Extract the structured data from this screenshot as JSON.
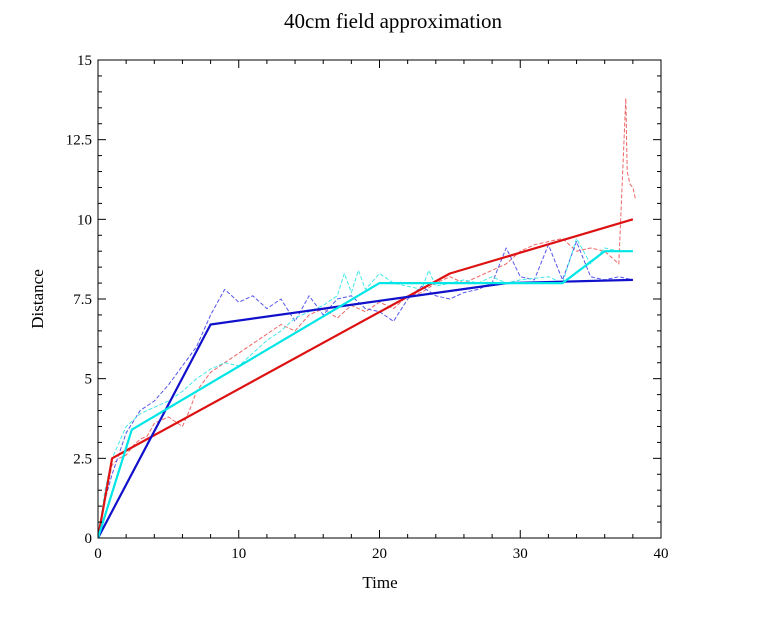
{
  "chart_data": {
    "type": "line",
    "title": "40cm field approximation",
    "xlabel": "Time",
    "ylabel": "Distance",
    "xlim": [
      0,
      40
    ],
    "ylim": [
      0,
      15
    ],
    "xticks": [
      0,
      10,
      20,
      30,
      40
    ],
    "yticks": [
      0,
      2.5,
      5,
      7.5,
      10,
      12.5,
      15
    ],
    "xtick_labels": [
      "0",
      "10",
      "20",
      "30",
      "40"
    ],
    "ytick_labels": [
      "0",
      "2.5",
      "5",
      "7.5",
      "10",
      "12.5",
      "15"
    ],
    "grid": false,
    "series": [
      {
        "color": "#dd1111",
        "style": "solid",
        "x": [
          0,
          1,
          25,
          38
        ],
        "y": [
          0,
          2.5,
          8.3,
          10
        ]
      },
      {
        "color": "#1111cc",
        "style": "solid",
        "x": [
          0,
          8,
          29,
          38
        ],
        "y": [
          0,
          6.7,
          8.0,
          8.1
        ]
      },
      {
        "color": "#00e5e5",
        "style": "solid",
        "x": [
          0,
          2.4,
          20,
          29,
          33,
          36,
          38
        ],
        "y": [
          0,
          3.4,
          8.0,
          8.0,
          8.0,
          9.0,
          9.0
        ]
      },
      {
        "color": "#ee6666",
        "style": "dashed",
        "x": [
          0,
          0.5,
          1,
          1.5,
          2,
          2.5,
          3,
          3.5,
          4,
          5,
          6,
          6.5,
          7,
          8,
          9,
          10,
          11,
          12,
          13,
          14,
          15,
          16,
          17,
          18,
          19,
          20,
          21,
          22,
          23,
          24,
          25,
          26,
          27,
          28,
          29,
          30,
          31,
          32,
          33,
          34,
          35,
          36,
          37,
          37.5,
          37.6,
          37.8,
          38,
          38.2
        ],
        "y": [
          0,
          1.2,
          2.3,
          2.5,
          2.6,
          2.9,
          3.1,
          3.2,
          3.6,
          3.8,
          3.5,
          4.0,
          4.6,
          5.2,
          5.5,
          5.8,
          6.1,
          6.4,
          6.7,
          6.5,
          7.0,
          7.2,
          6.9,
          7.3,
          7.1,
          7.4,
          7.2,
          7.6,
          7.7,
          8.0,
          8.2,
          8.0,
          8.2,
          8.4,
          8.6,
          9.0,
          9.2,
          9.3,
          9.4,
          9.0,
          9.1,
          9.0,
          8.6,
          13.8,
          11.5,
          11.1,
          11.0,
          10.6
        ]
      },
      {
        "color": "#5555ee",
        "style": "dashed",
        "x": [
          0,
          0.5,
          1,
          2,
          3,
          4,
          5,
          6,
          7,
          8,
          9,
          10,
          11,
          12,
          13,
          14,
          15,
          16,
          17,
          18,
          19,
          20,
          21,
          22,
          23,
          24,
          25,
          26,
          27,
          28,
          29,
          30,
          31,
          32,
          33,
          34,
          35,
          36,
          37,
          38
        ],
        "y": [
          0,
          1.2,
          2.0,
          3.3,
          4.0,
          4.3,
          4.8,
          5.4,
          6.0,
          7.0,
          7.8,
          7.4,
          7.6,
          7.2,
          7.5,
          6.8,
          7.6,
          7.0,
          7.5,
          7.6,
          7.2,
          7.1,
          6.8,
          7.5,
          7.9,
          7.6,
          7.5,
          7.7,
          7.8,
          8.0,
          9.1,
          8.2,
          8.1,
          9.2,
          8.1,
          9.3,
          8.2,
          8.1,
          8.2,
          8.1
        ]
      },
      {
        "color": "#44e8e8",
        "style": "dashed",
        "x": [
          0,
          0.5,
          1,
          2,
          3,
          4,
          5,
          6,
          7,
          8,
          9,
          10,
          11,
          12,
          13,
          14,
          15,
          16,
          17,
          17.5,
          18,
          18.5,
          19,
          20,
          21,
          22,
          23,
          23.5,
          24,
          25,
          26,
          27,
          28,
          29,
          30,
          32,
          33,
          34,
          35,
          36,
          37,
          38
        ],
        "y": [
          0,
          1.5,
          2.5,
          3.5,
          3.9,
          4.1,
          4.3,
          4.6,
          5.0,
          5.3,
          5.5,
          5.4,
          5.8,
          6.2,
          6.5,
          6.9,
          7.1,
          7.3,
          7.6,
          8.3,
          7.7,
          8.4,
          7.8,
          8.3,
          8.0,
          7.9,
          7.8,
          8.4,
          7.9,
          8.0,
          8.1,
          8.0,
          8.2,
          8.0,
          8.1,
          8.2,
          8.0,
          9.4,
          8.6,
          9.1,
          9.0,
          9.0
        ]
      }
    ]
  }
}
